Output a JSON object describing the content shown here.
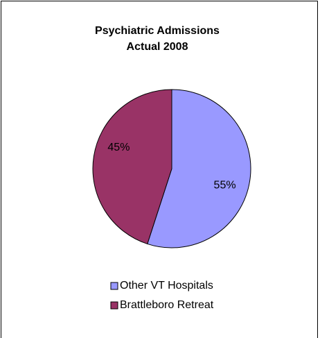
{
  "chart_data": {
    "type": "pie",
    "title": [
      "Psychiatric Admissions",
      "Actual 2008"
    ],
    "categories": [
      "Other VT Hospitals",
      "Brattleboro Retreat"
    ],
    "values": [
      55,
      45
    ],
    "value_labels": [
      "55%",
      "45%"
    ],
    "colors": [
      "#9999ff",
      "#993366"
    ]
  }
}
